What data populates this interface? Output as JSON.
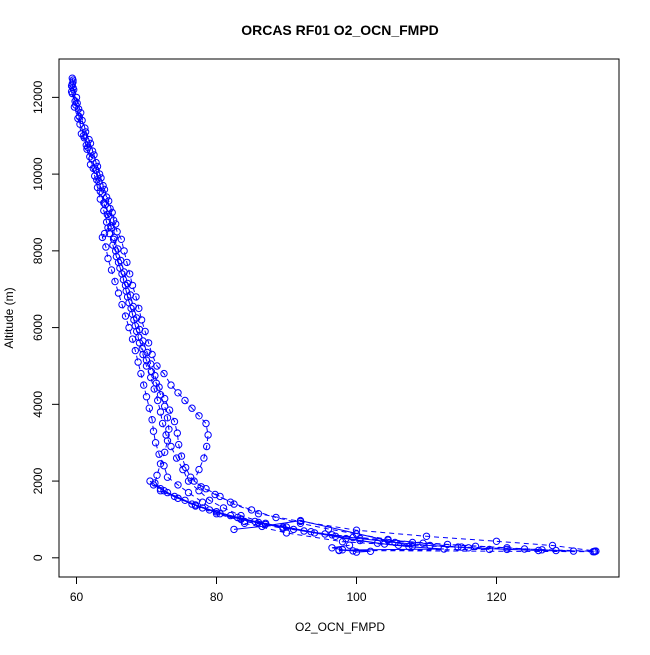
{
  "chart_data": {
    "type": "scatter",
    "title": "ORCAS RF01 O2_OCN_FMPD",
    "xlabel": "O2_OCN_FMPD",
    "ylabel": "Altitude (m)",
    "xlim": [
      57.5,
      137.5
    ],
    "ylim": [
      -500,
      13000
    ],
    "xticks": [
      60,
      80,
      100,
      120
    ],
    "yticks": [
      0,
      2000,
      4000,
      6000,
      8000,
      10000,
      12000
    ],
    "grid": false,
    "legend": "none",
    "color": "#0000ff",
    "series": [
      {
        "style": "dashed",
        "points": [
          [
            59.4,
            12500
          ],
          [
            59.5,
            12400
          ],
          [
            59.3,
            12300
          ],
          [
            59.6,
            12200
          ],
          [
            59.4,
            12100
          ],
          [
            59.8,
            11900
          ],
          [
            60.3,
            11700
          ],
          [
            60.8,
            11400
          ],
          [
            61.3,
            11100
          ],
          [
            62.0,
            10800
          ],
          [
            62.5,
            10500
          ],
          [
            63.0,
            10200
          ],
          [
            63.5,
            9900
          ],
          [
            64.0,
            9600
          ],
          [
            64.6,
            9300
          ],
          [
            65.1,
            9000
          ],
          [
            65.6,
            8700
          ],
          [
            64.5,
            8600
          ],
          [
            64.0,
            8450
          ],
          [
            63.7,
            8350
          ],
          [
            64.2,
            8100
          ],
          [
            64.5,
            7800
          ],
          [
            65.0,
            7500
          ],
          [
            65.5,
            7200
          ],
          [
            66.0,
            6900
          ],
          [
            66.5,
            6600
          ],
          [
            67.0,
            6300
          ],
          [
            67.5,
            6000
          ],
          [
            68.0,
            5700
          ],
          [
            68.4,
            5400
          ],
          [
            68.8,
            5100
          ],
          [
            69.2,
            4800
          ],
          [
            69.6,
            4500
          ],
          [
            70.0,
            4200
          ],
          [
            70.4,
            3900
          ],
          [
            70.8,
            3600
          ],
          [
            71.0,
            3300
          ],
          [
            71.3,
            3000
          ],
          [
            71.8,
            2700
          ],
          [
            72.5,
            2400
          ],
          [
            73.0,
            2100
          ],
          [
            74.5,
            1900
          ],
          [
            76.0,
            1700
          ],
          [
            78.0,
            1450
          ],
          [
            80.0,
            1200
          ],
          [
            84.0,
            900
          ],
          [
            90.0,
            650
          ],
          [
            98.0,
            420
          ],
          [
            106.0,
            330
          ],
          [
            115.0,
            280
          ],
          [
            124.0,
            230
          ],
          [
            134.0,
            170
          ]
        ]
      },
      {
        "style": "dashed",
        "points": [
          [
            59.5,
            12450
          ],
          [
            60.0,
            12000
          ],
          [
            60.6,
            11600
          ],
          [
            61.2,
            11200
          ],
          [
            61.8,
            10900
          ],
          [
            62.3,
            10600
          ],
          [
            62.8,
            10300
          ],
          [
            63.3,
            10000
          ],
          [
            63.8,
            9700
          ],
          [
            64.3,
            9400
          ],
          [
            64.8,
            9100
          ],
          [
            65.3,
            8800
          ],
          [
            65.8,
            8500
          ],
          [
            66.4,
            8300
          ],
          [
            66.8,
            8000
          ],
          [
            67.2,
            7700
          ],
          [
            67.6,
            7400
          ],
          [
            68.0,
            7100
          ],
          [
            68.5,
            6800
          ],
          [
            68.9,
            6500
          ],
          [
            69.3,
            6200
          ],
          [
            69.8,
            5900
          ],
          [
            70.3,
            5600
          ],
          [
            70.8,
            5300
          ],
          [
            71.5,
            5000
          ],
          [
            72.5,
            4800
          ],
          [
            73.5,
            4500
          ],
          [
            74.5,
            4300
          ],
          [
            75.5,
            4100
          ],
          [
            76.5,
            3900
          ],
          [
            77.5,
            3700
          ],
          [
            78.5,
            3500
          ],
          [
            78.8,
            3200
          ],
          [
            78.6,
            2900
          ],
          [
            78.2,
            2600
          ],
          [
            77.5,
            2300
          ],
          [
            76.8,
            2000
          ],
          [
            78.5,
            1800
          ],
          [
            80.5,
            1600
          ],
          [
            82.5,
            1400
          ],
          [
            86.0,
            1150
          ],
          [
            92.0,
            950
          ],
          [
            100.0,
            720
          ],
          [
            110.0,
            560
          ],
          [
            120.0,
            430
          ],
          [
            128.0,
            320
          ],
          [
            134.2,
            175
          ]
        ]
      },
      {
        "style": "dashed",
        "points": [
          [
            59.4,
            12350
          ],
          [
            59.9,
            11800
          ],
          [
            60.4,
            11500
          ],
          [
            61.0,
            11000
          ],
          [
            61.6,
            10700
          ],
          [
            62.2,
            10400
          ],
          [
            62.8,
            10100
          ],
          [
            63.2,
            9800
          ],
          [
            63.7,
            9500
          ],
          [
            64.1,
            9200
          ],
          [
            64.6,
            8900
          ],
          [
            65.0,
            8600
          ],
          [
            65.3,
            8300
          ],
          [
            65.6,
            8000
          ],
          [
            66.0,
            7700
          ],
          [
            66.5,
            7400
          ],
          [
            67.0,
            7100
          ],
          [
            67.3,
            6800
          ],
          [
            67.8,
            6500
          ],
          [
            68.2,
            6200
          ],
          [
            68.6,
            5900
          ],
          [
            69.0,
            5600
          ],
          [
            69.5,
            5300
          ],
          [
            70.0,
            5000
          ],
          [
            70.6,
            4700
          ],
          [
            71.1,
            4400
          ],
          [
            71.6,
            4100
          ],
          [
            72.0,
            3800
          ],
          [
            72.3,
            3500
          ],
          [
            72.8,
            3200
          ],
          [
            73.5,
            2900
          ],
          [
            74.3,
            2600
          ],
          [
            75.2,
            2300
          ],
          [
            76.0,
            2000
          ],
          [
            77.5,
            1750
          ],
          [
            79.0,
            1500
          ],
          [
            81.0,
            1300
          ],
          [
            83.5,
            1100
          ],
          [
            87.0,
            900
          ],
          [
            92.5,
            700
          ],
          [
            99.5,
            530
          ],
          [
            108.0,
            400
          ],
          [
            117.0,
            300
          ],
          [
            126.5,
            210
          ],
          [
            134.0,
            165
          ]
        ]
      },
      {
        "style": "dashed",
        "points": [
          [
            59.5,
            12250
          ],
          [
            60.1,
            11850
          ],
          [
            60.5,
            11300
          ],
          [
            61.1,
            10950
          ],
          [
            61.5,
            10650
          ],
          [
            62.0,
            10250
          ],
          [
            62.6,
            9950
          ],
          [
            63.0,
            9650
          ],
          [
            63.4,
            9350
          ],
          [
            63.9,
            9050
          ],
          [
            64.3,
            8750
          ],
          [
            64.7,
            8450
          ],
          [
            65.2,
            8150
          ],
          [
            65.7,
            7850
          ],
          [
            66.2,
            7550
          ],
          [
            66.7,
            7250
          ],
          [
            67.1,
            6950
          ],
          [
            67.5,
            6650
          ],
          [
            68.0,
            6350
          ],
          [
            68.4,
            6050
          ],
          [
            68.9,
            5750
          ],
          [
            69.4,
            5450
          ],
          [
            70.0,
            5150
          ],
          [
            70.7,
            4850
          ],
          [
            71.4,
            4550
          ],
          [
            72.0,
            4250
          ],
          [
            72.6,
            3950
          ],
          [
            73.0,
            3650
          ],
          [
            73.2,
            3350
          ],
          [
            73.0,
            3050
          ],
          [
            72.6,
            2750
          ],
          [
            72.0,
            2450
          ],
          [
            71.5,
            2150
          ],
          [
            71.2,
            1950
          ],
          [
            72.5,
            1750
          ],
          [
            74.5,
            1550
          ],
          [
            77.0,
            1350
          ],
          [
            80.0,
            1150
          ],
          [
            84.0,
            950
          ],
          [
            89.5,
            770
          ],
          [
            96.5,
            600
          ],
          [
            104.5,
            460
          ],
          [
            113.0,
            350
          ],
          [
            121.5,
            260
          ],
          [
            128.5,
            190
          ],
          [
            133.8,
            160
          ]
        ]
      },
      {
        "style": "dashed",
        "points": [
          [
            59.3,
            12150
          ],
          [
            59.7,
            11750
          ],
          [
            60.2,
            11450
          ],
          [
            60.7,
            11050
          ],
          [
            61.4,
            10750
          ],
          [
            61.9,
            10450
          ],
          [
            62.4,
            10150
          ],
          [
            62.9,
            9850
          ],
          [
            63.4,
            9550
          ],
          [
            63.9,
            9250
          ],
          [
            64.4,
            8950
          ],
          [
            64.9,
            8650
          ],
          [
            65.4,
            8350
          ],
          [
            65.9,
            8050
          ],
          [
            66.3,
            7750
          ],
          [
            66.8,
            7450
          ],
          [
            67.3,
            7150
          ],
          [
            67.7,
            6850
          ],
          [
            68.1,
            6550
          ],
          [
            68.6,
            6250
          ],
          [
            69.0,
            5950
          ],
          [
            69.5,
            5650
          ],
          [
            70.1,
            5350
          ],
          [
            70.6,
            5050
          ],
          [
            71.2,
            4750
          ],
          [
            71.8,
            4450
          ],
          [
            72.6,
            4150
          ],
          [
            73.3,
            3850
          ],
          [
            74.0,
            3550
          ],
          [
            74.4,
            3250
          ],
          [
            74.6,
            2950
          ],
          [
            75.0,
            2650
          ],
          [
            75.6,
            2350
          ],
          [
            76.3,
            2100
          ],
          [
            77.8,
            1850
          ],
          [
            79.8,
            1650
          ],
          [
            82.0,
            1450
          ],
          [
            85.0,
            1250
          ],
          [
            88.5,
            1050
          ],
          [
            92.0,
            900
          ],
          [
            96.0,
            750
          ],
          [
            100.0,
            620
          ],
          [
            104.5,
            480
          ],
          [
            109.5,
            380
          ],
          [
            114.5,
            280
          ],
          [
            119.0,
            220
          ],
          [
            97.5,
            190
          ],
          [
            134.0,
            160
          ]
        ]
      },
      {
        "style": "solid",
        "points": [
          [
            70.5,
            2000
          ],
          [
            72.0,
            1800
          ],
          [
            74.0,
            1600
          ],
          [
            76.5,
            1400
          ],
          [
            79.0,
            1250
          ],
          [
            82.0,
            1100
          ],
          [
            85.5,
            950
          ],
          [
            89.5,
            800
          ],
          [
            94.0,
            650
          ],
          [
            98.5,
            500
          ],
          [
            103.0,
            380
          ],
          [
            107.5,
            290
          ],
          [
            112.5,
            230
          ],
          [
            97.5,
            200
          ],
          [
            99.5,
            180
          ],
          [
            100.0,
            150
          ],
          [
            102.0,
            170
          ],
          [
            98.0,
            210
          ],
          [
            96.5,
            260
          ],
          [
            99.0,
            330
          ]
        ]
      },
      {
        "style": "solid",
        "points": [
          [
            71.0,
            1900
          ],
          [
            73.0,
            1700
          ],
          [
            75.5,
            1500
          ],
          [
            78.0,
            1300
          ],
          [
            80.5,
            1150
          ],
          [
            83.5,
            1000
          ],
          [
            87.0,
            870
          ],
          [
            91.0,
            740
          ],
          [
            95.5,
            620
          ],
          [
            100.5,
            500
          ],
          [
            105.5,
            400
          ],
          [
            110.5,
            320
          ],
          [
            116.0,
            260
          ],
          [
            121.5,
            220
          ],
          [
            126.0,
            190
          ],
          [
            131.0,
            175
          ]
        ]
      },
      {
        "style": "solid",
        "points": [
          [
            72.0,
            1750
          ],
          [
            74.5,
            1550
          ],
          [
            77.0,
            1380
          ],
          [
            80.0,
            1200
          ],
          [
            83.0,
            1050
          ],
          [
            86.0,
            920
          ],
          [
            90.0,
            800
          ],
          [
            93.5,
            680
          ],
          [
            97.0,
            560
          ],
          [
            100.5,
            450
          ],
          [
            104.0,
            360
          ],
          [
            108.0,
            300
          ],
          [
            92.0,
            970
          ],
          [
            86.5,
            820
          ],
          [
            82.5,
            740
          ]
        ]
      }
    ]
  }
}
